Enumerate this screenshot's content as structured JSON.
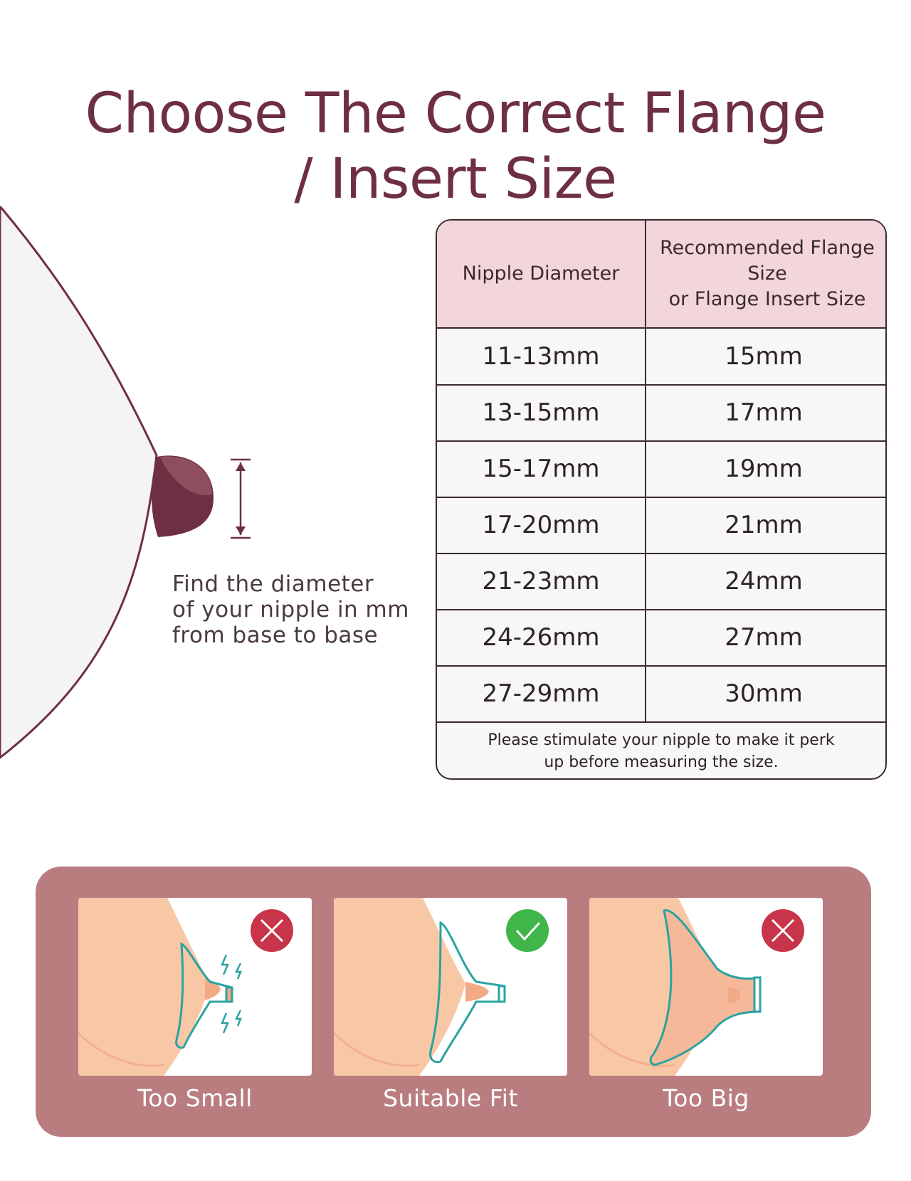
{
  "title": {
    "line1": "Choose The Correct Flange",
    "line2": "/ Insert Size"
  },
  "instruction": {
    "line1": "Find the diameter",
    "line2": "of your nipple in mm",
    "line3": "from base to base"
  },
  "size_table": {
    "headers": {
      "nipple": "Nipple Diameter",
      "flange_line1": "Recommended Flange Size",
      "flange_line2": "or Flange Insert Size"
    },
    "rows": [
      {
        "nipple": "11-13mm",
        "flange": "15mm"
      },
      {
        "nipple": "13-15mm",
        "flange": "17mm"
      },
      {
        "nipple": "15-17mm",
        "flange": "19mm"
      },
      {
        "nipple": "17-20mm",
        "flange": "21mm"
      },
      {
        "nipple": "21-23mm",
        "flange": "24mm"
      },
      {
        "nipple": "24-26mm",
        "flange": "27mm"
      },
      {
        "nipple": "27-29mm",
        "flange": "30mm"
      }
    ],
    "note_line1": "Please stimulate your nipple to make it perk",
    "note_line2": "up before measuring the size."
  },
  "fit_examples": [
    {
      "label": "Too Small",
      "status": "wrong",
      "icon": "x-circle-icon"
    },
    {
      "label": "Suitable Fit",
      "status": "correct",
      "icon": "check-circle-icon"
    },
    {
      "label": "Too Big",
      "status": "wrong",
      "icon": "x-circle-icon"
    }
  ],
  "colors": {
    "title": "#6e2f42",
    "header_bg": "#f2d6da",
    "panel_bg": "#b97d80",
    "wrong": "#c8344a",
    "correct": "#3fb54a",
    "flange": "#2aa3a0",
    "skin": "#f8c8a6"
  }
}
